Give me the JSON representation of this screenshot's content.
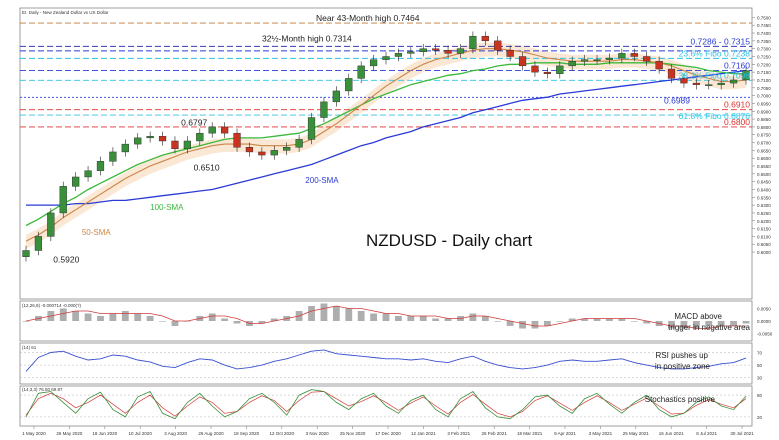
{
  "chart_data": [
    {
      "type": "line",
      "panel": "price",
      "header": "EI. Daily - New Zealand Dollar vs US Dollar",
      "title": "NZDUSD - Daily chart",
      "ylim": [
        0.57,
        0.756
      ],
      "x_tick_labels": [
        "1 May 2020",
        "26 May 2020",
        "18 Jun 2020",
        "10 Jul 2020",
        "3 Aug 2020",
        "26 Aug 2020",
        "18 Sep 2020",
        "12 Oct 2020",
        "3 Nov 2020",
        "25 Nov 2020",
        "17 Dec 2020",
        "12 Jan 2021",
        "3 Feb 2021",
        "26 Feb 2021",
        "18 Mar 2021",
        "9 Apr 2021",
        "3 May 2021",
        "25 May 2021",
        "16 Jun 2021",
        "8 Jul 2021",
        "30 Jul 2021"
      ],
      "y_tick_labels": [
        "0.7500",
        "0.7450",
        "0.7400",
        "0.7350",
        "0.7300",
        "0.7250",
        "0.7200",
        "0.7150",
        "0.7100",
        "0.7050",
        "0.7000",
        "0.6950",
        "0.6900",
        "0.6850",
        "0.6800",
        "0.6750",
        "0.6700",
        "0.6650",
        "0.6600",
        "0.6550",
        "0.6500",
        "0.6450",
        "0.6400",
        "0.6350",
        "0.6300",
        "0.6250",
        "0.6200",
        "0.6150",
        "0.6100",
        "0.6050",
        "0.6000"
      ],
      "close": [
        0.601,
        0.61,
        0.625,
        0.642,
        0.648,
        0.652,
        0.658,
        0.664,
        0.669,
        0.673,
        0.674,
        0.671,
        0.666,
        0.671,
        0.676,
        0.68,
        0.676,
        0.667,
        0.664,
        0.662,
        0.665,
        0.667,
        0.672,
        0.686,
        0.696,
        0.703,
        0.711,
        0.719,
        0.723,
        0.725,
        0.727,
        0.728,
        0.73,
        0.729,
        0.727,
        0.73,
        0.738,
        0.735,
        0.729,
        0.725,
        0.719,
        0.715,
        0.714,
        0.719,
        0.722,
        0.723,
        0.723,
        0.724,
        0.727,
        0.725,
        0.722,
        0.717,
        0.711,
        0.708,
        0.707,
        0.707,
        0.708,
        0.71,
        0.716
      ],
      "sma100": [
        0.617,
        0.621,
        0.626,
        0.631,
        0.635,
        0.64,
        0.644,
        0.648,
        0.652,
        0.656,
        0.659,
        0.662,
        0.664,
        0.666,
        0.668,
        0.67,
        0.672,
        0.673,
        0.673,
        0.673,
        0.674,
        0.675,
        0.676,
        0.679,
        0.682,
        0.686,
        0.69,
        0.694,
        0.698,
        0.701,
        0.704,
        0.707,
        0.709,
        0.711,
        0.713,
        0.714,
        0.716,
        0.717,
        0.719,
        0.72,
        0.72,
        0.721,
        0.721,
        0.721,
        0.72,
        0.72,
        0.72,
        0.721,
        0.721,
        0.721,
        0.721,
        0.721,
        0.72,
        0.719,
        0.718,
        0.716,
        0.715,
        0.714,
        0.714
      ],
      "sma200": [
        0.63,
        0.63,
        0.63,
        0.63,
        0.631,
        0.631,
        0.632,
        0.633,
        0.633,
        0.634,
        0.635,
        0.636,
        0.637,
        0.638,
        0.639,
        0.64,
        0.642,
        0.644,
        0.646,
        0.648,
        0.65,
        0.652,
        0.654,
        0.656,
        0.659,
        0.662,
        0.665,
        0.668,
        0.67,
        0.673,
        0.675,
        0.677,
        0.68,
        0.682,
        0.684,
        0.686,
        0.689,
        0.691,
        0.693,
        0.695,
        0.697,
        0.698,
        0.699,
        0.701,
        0.702,
        0.703,
        0.704,
        0.705,
        0.706,
        0.707,
        0.708,
        0.709,
        0.71,
        0.711,
        0.712,
        0.713,
        0.714,
        0.715,
        0.716
      ],
      "sma50": [
        0.607,
        0.611,
        0.616,
        0.622,
        0.627,
        0.632,
        0.637,
        0.642,
        0.647,
        0.651,
        0.655,
        0.658,
        0.661,
        0.664,
        0.666,
        0.668,
        0.669,
        0.669,
        0.669,
        0.668,
        0.668,
        0.668,
        0.669,
        0.672,
        0.677,
        0.682,
        0.688,
        0.694,
        0.7,
        0.706,
        0.711,
        0.716,
        0.72,
        0.723,
        0.725,
        0.727,
        0.729,
        0.73,
        0.73,
        0.729,
        0.728,
        0.726,
        0.724,
        0.723,
        0.722,
        0.722,
        0.722,
        0.722,
        0.723,
        0.723,
        0.722,
        0.721,
        0.719,
        0.716,
        0.713,
        0.711,
        0.709,
        0.709,
        0.71
      ],
      "levels": [
        {
          "value": 0.7464,
          "label": "Near 43-Month high 0.7464",
          "color": "#c07a3a",
          "dash": "6,3"
        },
        {
          "value": 0.7314,
          "label": "32½-Month high 0.7314",
          "color": "#c07a3a",
          "dash": "6,3"
        },
        {
          "value": 0.7315,
          "label": "0.7286 - 0.7315",
          "color": "#2a3bd6",
          "dash": "6,3"
        },
        {
          "value": 0.7286,
          "label": "",
          "color": "#2a3bd6",
          "dash": "6,3"
        },
        {
          "value": 0.7238,
          "label": "23.6% Fibo 0.7238",
          "color": "#2ec4e6",
          "dash": "6,3"
        },
        {
          "value": 0.716,
          "label": "0.7160",
          "color": "#2a3bd6",
          "dash": "6,3"
        },
        {
          "value": 0.7098,
          "label": "38.2% Fibo 0.7098",
          "color": "#2ec4e6",
          "dash": "6,3"
        },
        {
          "value": 0.6989,
          "label": "0.6989",
          "color": "#2a3bd6",
          "dash": "2,2"
        },
        {
          "value": 0.691,
          "label": "0.6910",
          "color": "#e03030",
          "dash": "6,3"
        },
        {
          "value": 0.6876,
          "label": "61.8% Fibo 0.6876",
          "color": "#2ec4e6",
          "dash": "6,3"
        },
        {
          "value": 0.68,
          "label": "0.6800",
          "color": "#e03030",
          "dash": "6,3"
        }
      ],
      "annotations": [
        {
          "text": "0.6797",
          "x": 12.5,
          "y": 0.6797
        },
        {
          "text": "0.6510",
          "x": 13.5,
          "y": 0.651
        },
        {
          "text": "0.5920",
          "x": 2.2,
          "y": 0.5922
        }
      ],
      "series_labels": [
        {
          "text": "200-SMA",
          "x": 22.5,
          "y": 0.644,
          "color": "#2a3bd6"
        },
        {
          "text": "100-SMA",
          "x": 10.0,
          "y": 0.627,
          "color": "#3cb83c"
        },
        {
          "text": "50-SMA",
          "x": 4.5,
          "y": 0.611,
          "color": "#c9874a"
        }
      ]
    },
    {
      "type": "line",
      "panel": "macd",
      "header": "(12,26,9) -0.000714 -0.000(?)",
      "note": "MACD above trigger in negative area",
      "note_lines": [
        "MACD above",
        "trigger in negative area"
      ],
      "y_tick_labels": [
        "0.0050",
        "0.0000",
        "-0.0050"
      ],
      "macd": [
        0.0,
        0.002,
        0.004,
        0.005,
        0.004,
        0.003,
        0.002,
        0.003,
        0.004,
        0.003,
        0.002,
        0.0,
        -0.002,
        0.0,
        0.002,
        0.003,
        0.001,
        -0.001,
        -0.002,
        -0.001,
        0.001,
        0.002,
        0.004,
        0.006,
        0.007,
        0.006,
        0.005,
        0.004,
        0.003,
        0.003,
        0.002,
        0.002,
        0.002,
        0.001,
        0.001,
        0.002,
        0.003,
        0.002,
        0.0,
        -0.002,
        -0.003,
        -0.003,
        -0.002,
        0.0,
        0.001,
        0.001,
        0.001,
        0.001,
        0.001,
        0.0,
        -0.001,
        -0.002,
        -0.003,
        -0.003,
        -0.003,
        -0.002,
        -0.002,
        -0.002,
        -0.001
      ],
      "signal": [
        0.0,
        0.001,
        0.002,
        0.003,
        0.004,
        0.004,
        0.003,
        0.003,
        0.003,
        0.003,
        0.003,
        0.002,
        0.0,
        0.0,
        0.001,
        0.002,
        0.002,
        0.001,
        -0.001,
        -0.001,
        0.0,
        0.001,
        0.002,
        0.004,
        0.005,
        0.006,
        0.005,
        0.005,
        0.004,
        0.003,
        0.003,
        0.002,
        0.002,
        0.002,
        0.001,
        0.001,
        0.002,
        0.002,
        0.001,
        0.0,
        -0.001,
        -0.002,
        -0.002,
        -0.001,
        0.0,
        0.001,
        0.001,
        0.001,
        0.001,
        0.001,
        0.0,
        -0.001,
        -0.002,
        -0.002,
        -0.003,
        -0.003,
        -0.002,
        -0.002,
        -0.002
      ]
    },
    {
      "type": "line",
      "panel": "rsi",
      "header": "(14) 61",
      "note_lines": [
        "RSI pushes up",
        "in positive zone"
      ],
      "ylim": [
        20,
        85
      ],
      "y_tick_labels": [
        "70",
        "50",
        "30"
      ],
      "rsi": [
        40,
        62,
        70,
        72,
        64,
        58,
        60,
        66,
        64,
        58,
        55,
        48,
        46,
        54,
        60,
        58,
        50,
        44,
        46,
        50,
        56,
        60,
        66,
        72,
        74,
        68,
        66,
        64,
        62,
        60,
        60,
        58,
        60,
        56,
        54,
        60,
        64,
        56,
        50,
        46,
        44,
        46,
        50,
        56,
        58,
        56,
        56,
        58,
        60,
        54,
        50,
        46,
        44,
        44,
        46,
        48,
        52,
        54,
        61
      ]
    },
    {
      "type": "line",
      "panel": "stochastics",
      "header": "(14,3,3) 76.50 69.97",
      "note_lines": [
        "Stochastics positive"
      ],
      "ylim": [
        -5,
        105
      ],
      "y_tick_labels": [
        "80",
        "20"
      ],
      "k": [
        20,
        85,
        90,
        60,
        30,
        70,
        88,
        40,
        20,
        75,
        90,
        30,
        15,
        60,
        85,
        50,
        20,
        35,
        70,
        85,
        60,
        25,
        80,
        95,
        90,
        60,
        40,
        70,
        85,
        50,
        30,
        65,
        80,
        40,
        20,
        70,
        90,
        45,
        20,
        15,
        40,
        75,
        80,
        50,
        30,
        70,
        85,
        55,
        30,
        60,
        80,
        40,
        20,
        30,
        60,
        75,
        50,
        40,
        77
      ],
      "d": [
        25,
        70,
        85,
        70,
        45,
        60,
        80,
        55,
        30,
        60,
        80,
        45,
        22,
        50,
        75,
        60,
        30,
        35,
        60,
        78,
        65,
        35,
        65,
        88,
        90,
        70,
        50,
        62,
        78,
        60,
        38,
        58,
        75,
        50,
        28,
        60,
        82,
        55,
        30,
        20,
        35,
        65,
        78,
        58,
        38,
        60,
        78,
        60,
        38,
        55,
        72,
        50,
        28,
        30,
        52,
        68,
        55,
        45,
        70
      ]
    }
  ],
  "colors": {
    "candle_up": "#3a8f3a",
    "candle_down": "#c8341f",
    "sma200": "#2a3bd6",
    "sma100": "#3cb83c",
    "sma50": "#c9874a",
    "cloud": "#f3c9a0",
    "macd_hist": "#9a9a9a",
    "macd_signal": "#d23a3a",
    "rsi_line": "#3a4fd0",
    "stoch_k": "#3a8f3a",
    "stoch_d": "#d23a3a"
  }
}
